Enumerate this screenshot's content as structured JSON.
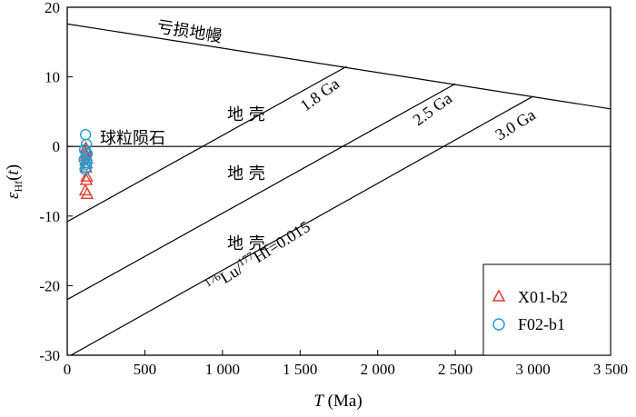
{
  "chart_data": {
    "type": "line",
    "xlabel": "T (Ma)",
    "ylabel": "εHf(t)",
    "xlim": [
      0,
      3500
    ],
    "ylim": [
      -30,
      20
    ],
    "x_ticks": [
      0,
      500,
      1000,
      1500,
      2000,
      2500,
      3000,
      3500
    ],
    "x_tick_labels": [
      "0",
      "500",
      "1 000",
      "1 500",
      "2 000",
      "2 500",
      "3 000",
      "3 500"
    ],
    "y_ticks": [
      -30,
      -20,
      -10,
      0,
      10,
      20
    ],
    "y_tick_labels": [
      "-30",
      "-20",
      "-10",
      "0",
      "10",
      "20"
    ],
    "grid": false,
    "lines": [
      {
        "name": "亏损地幔",
        "x": [
          0,
          3500
        ],
        "y": [
          17.6,
          5.4
        ]
      },
      {
        "name": "1.8 Ga",
        "x": [
          0,
          1800
        ],
        "y": [
          -10.8,
          11.5
        ]
      },
      {
        "name": "2.5 Ga",
        "x": [
          0,
          2500
        ],
        "y": [
          -22,
          9
        ]
      },
      {
        "name": "3.0 Ga",
        "x": [
          0,
          3000
        ],
        "y": [
          -30.3,
          7.2
        ]
      },
      {
        "name": "chondrite",
        "x": [
          0,
          3500
        ],
        "y": [
          0,
          0
        ]
      }
    ],
    "annotations": {
      "depleted_mantle": "亏损地幔",
      "chondrite": "球粒陨石",
      "crust": "地 壳",
      "age_18": "1.8 Ga",
      "age_25": "2.5 Ga",
      "age_30": "3.0 Ga",
      "lu_hf_ratio": "176Lu/177Hf=0.015"
    },
    "series": [
      {
        "name": "X01-b2",
        "marker": "triangle",
        "color": "#e8392e",
        "x": [
          120,
          125,
          118,
          122,
          127,
          119,
          124,
          121,
          126,
          123,
          117,
          128
        ],
        "y": [
          -0.2,
          -0.6,
          -1.0,
          -1.3,
          -1.7,
          -2.0,
          -2.4,
          -3.0,
          -4.3,
          -4.8,
          -6.3,
          -6.8
        ]
      },
      {
        "name": "F02-b1",
        "marker": "circle",
        "color": "#1fa0d8",
        "x": [
          118,
          124,
          112,
          128,
          121,
          109,
          126,
          119,
          123,
          115
        ],
        "y": [
          1.7,
          0.3,
          -0.5,
          -1.0,
          -1.5,
          -1.9,
          -2.3,
          -2.6,
          -3.0,
          -3.3
        ]
      }
    ],
    "legend": {
      "position": "bottom-right",
      "entries": [
        "X01-b2",
        "F02-b1"
      ]
    }
  }
}
